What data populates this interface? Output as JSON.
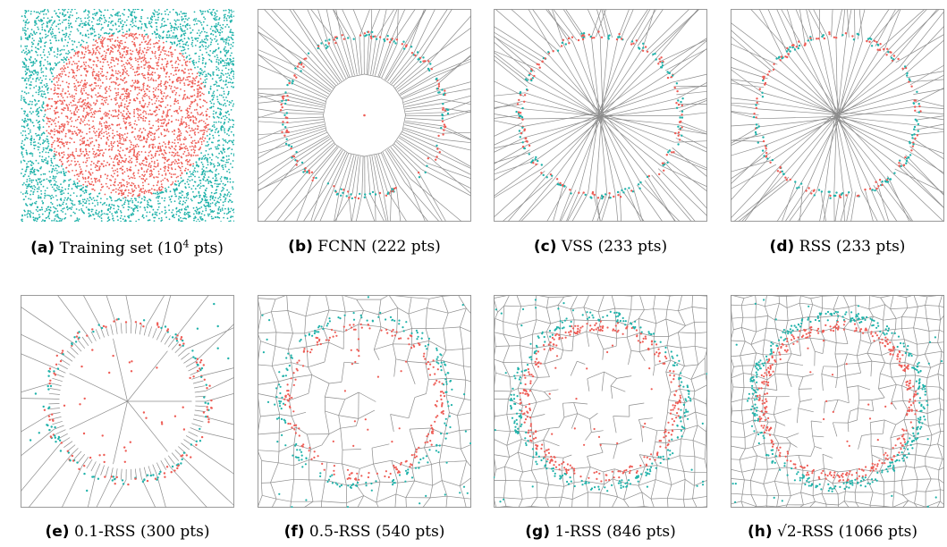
{
  "colors": {
    "class_a": "#20b2aa",
    "class_b": "#ee5c55",
    "edge": "#8c8c8c",
    "frame": "#9a9a9a"
  },
  "panels": [
    {
      "id": "a",
      "tag": "(a)",
      "label_pre": "Training set (10",
      "label_sup": "4",
      "label_post": " pts)",
      "kind": "training",
      "points": "10^4"
    },
    {
      "id": "b",
      "tag": "(b)",
      "label": "FCNN (222 pts)",
      "kind": "sparse",
      "points": 222
    },
    {
      "id": "c",
      "tag": "(c)",
      "label": "VSS (233 pts)",
      "kind": "sparse",
      "points": 233
    },
    {
      "id": "d",
      "tag": "(d)",
      "label": "RSS (233 pts)",
      "kind": "sparse",
      "points": 233
    },
    {
      "id": "e",
      "tag": "(e)",
      "label": "0.1-RSS (300 pts)",
      "kind": "medium",
      "points": 300
    },
    {
      "id": "f",
      "tag": "(f)",
      "label": "0.5-RSS (540 pts)",
      "kind": "dense",
      "points": 540
    },
    {
      "id": "g",
      "tag": "(g)",
      "label": "1-RSS (846 pts)",
      "kind": "dense",
      "points": 846
    },
    {
      "id": "h",
      "tag": "(h)",
      "label_sqrt": "2",
      "label_post": "-RSS (1066 pts)",
      "kind": "dense",
      "points": 1066
    }
  ]
}
